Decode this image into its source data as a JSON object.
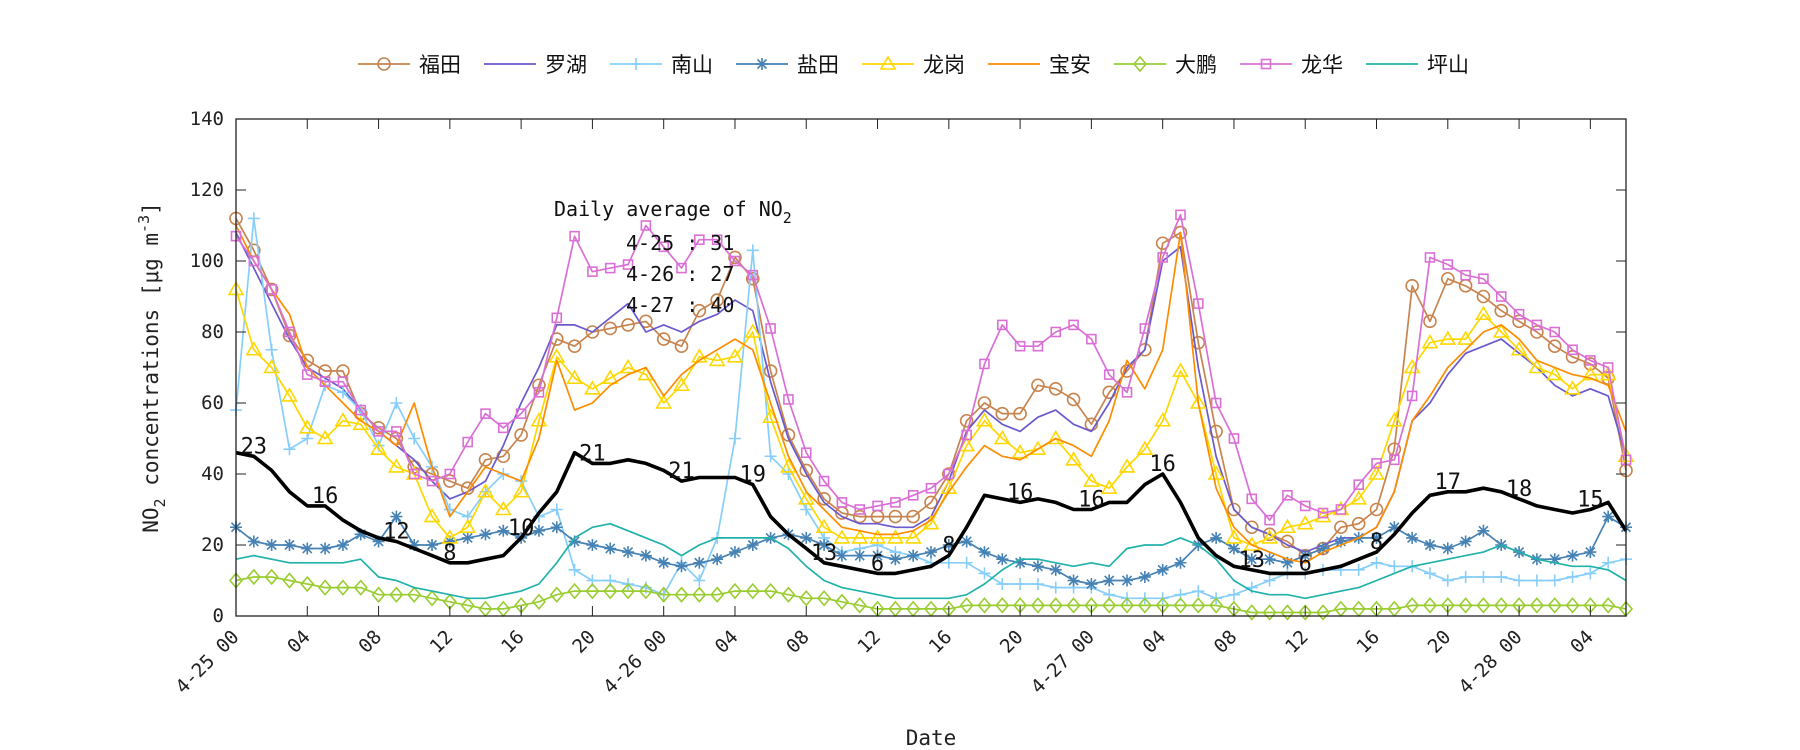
{
  "chart_data": {
    "type": "line",
    "xlabel": "Date",
    "ylabel": "NO2 concentrations [μg m-3]",
    "ylabel_parts": {
      "base": "NO",
      "sub": "2",
      "mid": " concentrations [",
      "mu": "μ",
      "g": "g m",
      "sup": "-3",
      "end": "]"
    },
    "ylim": [
      0,
      140
    ],
    "yticks": [
      0,
      20,
      40,
      60,
      80,
      100,
      120,
      140
    ],
    "xlim": [
      0,
      78
    ],
    "xticks": [
      {
        "x": 0,
        "label": "4-25 00"
      },
      {
        "x": 4,
        "label": "04"
      },
      {
        "x": 8,
        "label": "08"
      },
      {
        "x": 12,
        "label": "12"
      },
      {
        "x": 16,
        "label": "16"
      },
      {
        "x": 20,
        "label": "20"
      },
      {
        "x": 24,
        "label": "4-26 00"
      },
      {
        "x": 28,
        "label": "04"
      },
      {
        "x": 32,
        "label": "08"
      },
      {
        "x": 36,
        "label": "12"
      },
      {
        "x": 40,
        "label": "16"
      },
      {
        "x": 44,
        "label": "20"
      },
      {
        "x": 48,
        "label": "4-27 00"
      },
      {
        "x": 52,
        "label": "04"
      },
      {
        "x": 56,
        "label": "08"
      },
      {
        "x": 60,
        "label": "12"
      },
      {
        "x": 64,
        "label": "16"
      },
      {
        "x": 68,
        "label": "20"
      },
      {
        "x": 72,
        "label": "4-28 00"
      },
      {
        "x": 76,
        "label": "04"
      }
    ],
    "grid": false,
    "legend_position": "top",
    "annotation": {
      "title": "Daily average of NO",
      "title_sub": "2",
      "lines": [
        "4-25 : 31",
        "4-26 : 27",
        "4-27 : 40"
      ]
    },
    "series": [
      {
        "name": "福田",
        "color": "#c8844e",
        "marker": "circle",
        "values": [
          112,
          103,
          92,
          79,
          72,
          69,
          69,
          57,
          53,
          50,
          42,
          40,
          38,
          36,
          44,
          45,
          51,
          65,
          78,
          76,
          80,
          81,
          82,
          83,
          78,
          76,
          86,
          89,
          101,
          95,
          69,
          51,
          41,
          33,
          29,
          28,
          28,
          28,
          28,
          32,
          40,
          55,
          60,
          57,
          57,
          65,
          64,
          61,
          54,
          63,
          69,
          75,
          105,
          108,
          77,
          52,
          30,
          25,
          23,
          21,
          17,
          19,
          25,
          26,
          30,
          47,
          93,
          83,
          95,
          93,
          90,
          86,
          83,
          80,
          76,
          73,
          71,
          67,
          41
        ]
      },
      {
        "name": "罗湖",
        "color": "#6a5acd",
        "marker": "none",
        "values": [
          108,
          98,
          88,
          78,
          70,
          67,
          64,
          58,
          52,
          48,
          44,
          38,
          33,
          35,
          38,
          48,
          60,
          70,
          82,
          82,
          80,
          84,
          88,
          80,
          82,
          80,
          83,
          85,
          89,
          86,
          66,
          50,
          40,
          32,
          28,
          26,
          26,
          25,
          25,
          28,
          38,
          52,
          58,
          54,
          52,
          56,
          58,
          54,
          52,
          60,
          70,
          75,
          100,
          104,
          70,
          45,
          30,
          25,
          23,
          20,
          18,
          20,
          22,
          22,
          25,
          35,
          55,
          60,
          68,
          74,
          76,
          78,
          74,
          70,
          65,
          62,
          64,
          62,
          45
        ]
      },
      {
        "name": "南山",
        "color": "#87cefa",
        "marker": "plus",
        "values": [
          58,
          112,
          75,
          47,
          50,
          65,
          63,
          58,
          48,
          60,
          50,
          42,
          30,
          28,
          35,
          40,
          38,
          28,
          30,
          13,
          10,
          10,
          9,
          8,
          6,
          15,
          10,
          22,
          50,
          103,
          45,
          40,
          30,
          22,
          18,
          19,
          20,
          18,
          17,
          15,
          15,
          15,
          12,
          9,
          9,
          9,
          8,
          8,
          8,
          6,
          5,
          5,
          5,
          6,
          7,
          5,
          6,
          8,
          10,
          12,
          12,
          13,
          13,
          13,
          15,
          14,
          14,
          12,
          10,
          11,
          11,
          11,
          10,
          10,
          10,
          11,
          12,
          15,
          16
        ]
      },
      {
        "name": "盐田",
        "color": "#4682b4",
        "marker": "asterisk",
        "values": [
          25,
          21,
          20,
          20,
          19,
          19,
          20,
          23,
          21,
          28,
          20,
          20,
          21,
          22,
          23,
          24,
          22,
          24,
          25,
          21,
          20,
          19,
          18,
          17,
          15,
          14,
          15,
          16,
          18,
          20,
          22,
          23,
          22,
          20,
          17,
          17,
          17,
          16,
          17,
          18,
          20,
          21,
          18,
          16,
          15,
          14,
          13,
          10,
          9,
          10,
          10,
          11,
          13,
          15,
          20,
          22,
          19,
          16,
          16,
          15,
          17,
          19,
          21,
          22,
          22,
          25,
          22,
          20,
          19,
          21,
          24,
          20,
          18,
          16,
          16,
          17,
          18,
          28,
          25
        ]
      },
      {
        "name": "龙岗",
        "color": "#ffd700",
        "marker": "triangle",
        "values": [
          92,
          75,
          70,
          62,
          53,
          50,
          55,
          54,
          47,
          42,
          40,
          28,
          22,
          25,
          35,
          30,
          35,
          55,
          73,
          67,
          64,
          67,
          70,
          68,
          60,
          65,
          73,
          72,
          73,
          80,
          56,
          42,
          33,
          25,
          22,
          22,
          22,
          22,
          22,
          26,
          36,
          48,
          55,
          50,
          46,
          47,
          50,
          44,
          38,
          36,
          42,
          47,
          55,
          69,
          60,
          40,
          22,
          20,
          22,
          25,
          26,
          28,
          30,
          33,
          40,
          55,
          70,
          77,
          78,
          78,
          85,
          80,
          75,
          70,
          68,
          64,
          68,
          68,
          45
        ]
      },
      {
        "name": "宝安",
        "color": "#ff8c00",
        "marker": "none",
        "values": [
          110,
          100,
          92,
          85,
          70,
          65,
          60,
          55,
          52,
          48,
          60,
          42,
          28,
          35,
          42,
          40,
          38,
          50,
          72,
          58,
          60,
          65,
          68,
          70,
          62,
          68,
          72,
          75,
          78,
          75,
          60,
          45,
          35,
          30,
          25,
          24,
          23,
          23,
          24,
          27,
          35,
          42,
          48,
          45,
          44,
          47,
          50,
          48,
          45,
          55,
          72,
          64,
          75,
          108,
          60,
          36,
          25,
          20,
          18,
          16,
          15,
          18,
          20,
          22,
          25,
          35,
          55,
          62,
          70,
          75,
          80,
          82,
          78,
          72,
          70,
          68,
          67,
          65,
          52
        ]
      },
      {
        "name": "大鹏",
        "color": "#9acd32",
        "marker": "diamond",
        "values": [
          10,
          11,
          11,
          10,
          9,
          8,
          8,
          8,
          6,
          6,
          6,
          5,
          4,
          3,
          2,
          2,
          3,
          4,
          6,
          7,
          7,
          7,
          7,
          7,
          6,
          6,
          6,
          6,
          7,
          7,
          7,
          6,
          5,
          5,
          4,
          3,
          2,
          2,
          2,
          2,
          2,
          3,
          3,
          3,
          3,
          3,
          3,
          3,
          3,
          3,
          3,
          3,
          3,
          3,
          3,
          3,
          2,
          1,
          1,
          1,
          1,
          1,
          2,
          2,
          2,
          2,
          3,
          3,
          3,
          3,
          3,
          3,
          3,
          3,
          3,
          3,
          3,
          3,
          2
        ]
      },
      {
        "name": "龙华",
        "color": "#da70d6",
        "marker": "square",
        "values": [
          107,
          100,
          92,
          80,
          68,
          66,
          66,
          58,
          52,
          52,
          40,
          38,
          40,
          49,
          57,
          53,
          57,
          63,
          84,
          107,
          97,
          98,
          99,
          110,
          104,
          98,
          106,
          106,
          100,
          96,
          81,
          61,
          46,
          38,
          32,
          30,
          31,
          32,
          34,
          36,
          40,
          51,
          71,
          82,
          76,
          76,
          80,
          82,
          78,
          68,
          63,
          81,
          101,
          113,
          88,
          60,
          50,
          33,
          27,
          34,
          31,
          29,
          30,
          37,
          43,
          44,
          62,
          101,
          99,
          96,
          95,
          90,
          85,
          82,
          80,
          75,
          72,
          70,
          44
        ]
      },
      {
        "name": "坪山",
        "color": "#20b2aa",
        "marker": "none",
        "values": [
          16,
          17,
          16,
          15,
          15,
          15,
          15,
          16,
          11,
          10,
          8,
          7,
          6,
          5,
          5,
          6,
          7,
          9,
          15,
          22,
          25,
          26,
          24,
          22,
          20,
          17,
          20,
          22,
          22,
          22,
          22,
          19,
          14,
          10,
          8,
          7,
          6,
          5,
          5,
          5,
          5,
          6,
          9,
          13,
          16,
          16,
          15,
          14,
          15,
          14,
          19,
          20,
          20,
          22,
          20,
          16,
          10,
          7,
          6,
          6,
          5,
          6,
          7,
          8,
          10,
          12,
          14,
          15,
          16,
          17,
          18,
          20,
          18,
          16,
          15,
          14,
          14,
          13,
          10
        ]
      },
      {
        "name": "",
        "color": "#000000",
        "marker": "none",
        "lineWidth": 3.6,
        "values": [
          46,
          45,
          41,
          35,
          31,
          31,
          27,
          24,
          22,
          21,
          19,
          17,
          15,
          15,
          16,
          17,
          22,
          29,
          35,
          46,
          43,
          43,
          44,
          43,
          41,
          38,
          39,
          39,
          39,
          37,
          28,
          23,
          19,
          15,
          14,
          13,
          12,
          12,
          13,
          14,
          17,
          25,
          34,
          33,
          32,
          33,
          32,
          30,
          30,
          32,
          32,
          37,
          40,
          32,
          22,
          17,
          14,
          13,
          12,
          12,
          12,
          13,
          14,
          16,
          18,
          23,
          29,
          34,
          35,
          35,
          36,
          35,
          33,
          31,
          30,
          29,
          30,
          32,
          24
        ]
      }
    ],
    "avg_labels": [
      {
        "x": 1,
        "value": "23"
      },
      {
        "x": 5,
        "value": "16"
      },
      {
        "x": 9,
        "value": "12"
      },
      {
        "x": 12,
        "value": "8"
      },
      {
        "x": 16,
        "value": "10"
      },
      {
        "x": 20,
        "value": "21"
      },
      {
        "x": 25,
        "value": "21"
      },
      {
        "x": 29,
        "value": "19"
      },
      {
        "x": 33,
        "value": "13"
      },
      {
        "x": 36,
        "value": "6"
      },
      {
        "x": 40,
        "value": "8"
      },
      {
        "x": 44,
        "value": "16"
      },
      {
        "x": 48,
        "value": "16"
      },
      {
        "x": 52,
        "value": "16"
      },
      {
        "x": 57,
        "value": "13"
      },
      {
        "x": 60,
        "value": "6"
      },
      {
        "x": 64,
        "value": "8"
      },
      {
        "x": 68,
        "value": "17"
      },
      {
        "x": 72,
        "value": "18"
      },
      {
        "x": 76,
        "value": "15"
      }
    ]
  }
}
